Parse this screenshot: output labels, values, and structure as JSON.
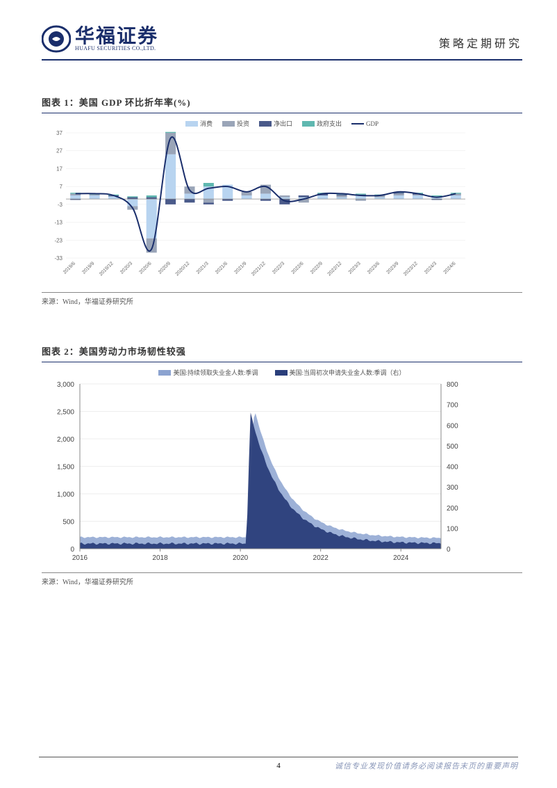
{
  "header": {
    "company_cn": "华福证券",
    "company_en": "HUAFU SECURITIES CO.,LTD.",
    "doc_type": "策略定期研究"
  },
  "chart1": {
    "title": "图表 1：美国 GDP 环比折年率(%)",
    "type": "stacked-bar-with-line",
    "legend": [
      {
        "label": "消费",
        "color": "#b8d4f0"
      },
      {
        "label": "投资",
        "color": "#9aa5b8"
      },
      {
        "label": "净出口",
        "color": "#4a5a8a"
      },
      {
        "label": "政府支出",
        "color": "#5fb8b0"
      },
      {
        "label": "GDP",
        "color": "#1a2e6b",
        "line": true
      }
    ],
    "y_axis": {
      "min": -33,
      "max": 37,
      "ticks": [
        -33,
        -23,
        -13,
        -3,
        7,
        17,
        27,
        37
      ]
    },
    "x_labels": [
      "2019/6",
      "2019/9",
      "2019/12",
      "2020/3",
      "2020/6",
      "2020/9",
      "2020/12",
      "2021/3",
      "2021/6",
      "2021/9",
      "2021/12",
      "2022/3",
      "2022/6",
      "2022/9",
      "2022/12",
      "2023/3",
      "2023/6",
      "2023/9",
      "2023/12",
      "2024/3",
      "2024/6"
    ],
    "gdp_line": [
      3,
      3,
      2,
      -5,
      -28,
      34,
      5,
      6,
      7,
      4,
      7,
      -1,
      0,
      3,
      3,
      2,
      2,
      4,
      3,
      1,
      3
    ],
    "stacks": [
      {
        "c": 2,
        "i": 1,
        "n": -0.5,
        "g": 0.5
      },
      {
        "c": 2,
        "i": 0.5,
        "n": 0,
        "g": 0.5
      },
      {
        "c": 1.5,
        "i": 0,
        "n": 0.5,
        "g": 0.5
      },
      {
        "c": -4,
        "i": -2,
        "n": 1,
        "g": 0.5
      },
      {
        "c": -22,
        "i": -8,
        "n": 1,
        "g": 1
      },
      {
        "c": 25,
        "i": 12,
        "n": -3,
        "g": 0.5
      },
      {
        "c": 3,
        "i": 4,
        "n": -2,
        "g": 0
      },
      {
        "c": 7,
        "i": -2,
        "n": -1,
        "g": 2
      },
      {
        "c": 8,
        "i": 0,
        "n": -1,
        "g": 0
      },
      {
        "c": 2,
        "i": 2,
        "n": 0,
        "g": 0
      },
      {
        "c": 3,
        "i": 5,
        "n": -1,
        "g": 0
      },
      {
        "c": 1,
        "i": 1,
        "n": -3,
        "g": 0
      },
      {
        "c": 1,
        "i": -2,
        "n": 1,
        "g": 0
      },
      {
        "c": 2,
        "i": 0,
        "n": 1,
        "g": 0.5
      },
      {
        "c": 1,
        "i": 1,
        "n": 0.5,
        "g": 0.5
      },
      {
        "c": 2,
        "i": -1,
        "n": 0.5,
        "g": 0.5
      },
      {
        "c": 1,
        "i": 1,
        "n": 0,
        "g": 0.5
      },
      {
        "c": 2,
        "i": 1,
        "n": 0.5,
        "g": 0.5
      },
      {
        "c": 2,
        "i": 0.5,
        "n": 0.5,
        "g": 0.5
      },
      {
        "c": 1,
        "i": 0.5,
        "n": -0.5,
        "g": 0.5
      },
      {
        "c": 2,
        "i": 1,
        "n": 0,
        "g": 0.5
      }
    ],
    "source": "来源：Wind，华福证券研究所",
    "grid_color": "#e8e8e8",
    "axis_color": "#888888",
    "tick_fontsize": 8,
    "tick_color": "#666666"
  },
  "chart2": {
    "title": "图表 2：美国劳动力市场韧性较强",
    "type": "dual-axis-area",
    "legend": [
      {
        "label": "美国:持续领取失业金人数:季调",
        "color": "#8ca3d0"
      },
      {
        "label": "美国:当周初次申请失业金人数:季调（右）",
        "color": "#2a3e7a"
      }
    ],
    "y_left": {
      "min": 0,
      "max": 3000,
      "ticks": [
        0,
        500,
        1000,
        1500,
        2000,
        2500,
        3000
      ]
    },
    "y_right": {
      "min": 0,
      "max": 800,
      "ticks": [
        0,
        100,
        200,
        300,
        400,
        500,
        600,
        700,
        800
      ]
    },
    "x_labels": [
      "2016",
      "2018",
      "2020",
      "2022",
      "2024"
    ],
    "x_range": [
      2016,
      2025
    ],
    "series_continuing": {
      "color": "#8ca3d0",
      "baseline_pre_2020": 210,
      "spike_start": 2020.15,
      "spike_peak_x": 2020.35,
      "spike_peak_y": 2550,
      "decay_2021": 350,
      "decay_2022": 180,
      "level_2024": 190
    },
    "series_initial": {
      "color": "#2a3e7a",
      "baseline_pre_2020": 25,
      "spike_start": 2020.15,
      "spike_peak_x": 2020.25,
      "spike_peak_y": 660,
      "decay_2020_end": 80,
      "decay_2021": 40,
      "level_2024": 25
    },
    "source": "来源：Wind，华福证券研究所",
    "grid_color": "#dddddd",
    "axis_color": "#888888",
    "tick_fontsize": 10,
    "tick_color": "#444444"
  },
  "footer": {
    "page": "4",
    "disclaimer": "诚信专业发现价值请务必阅读报告末页的重要声明"
  },
  "colors": {
    "brand": "#1a2e6b",
    "text": "#333333"
  }
}
